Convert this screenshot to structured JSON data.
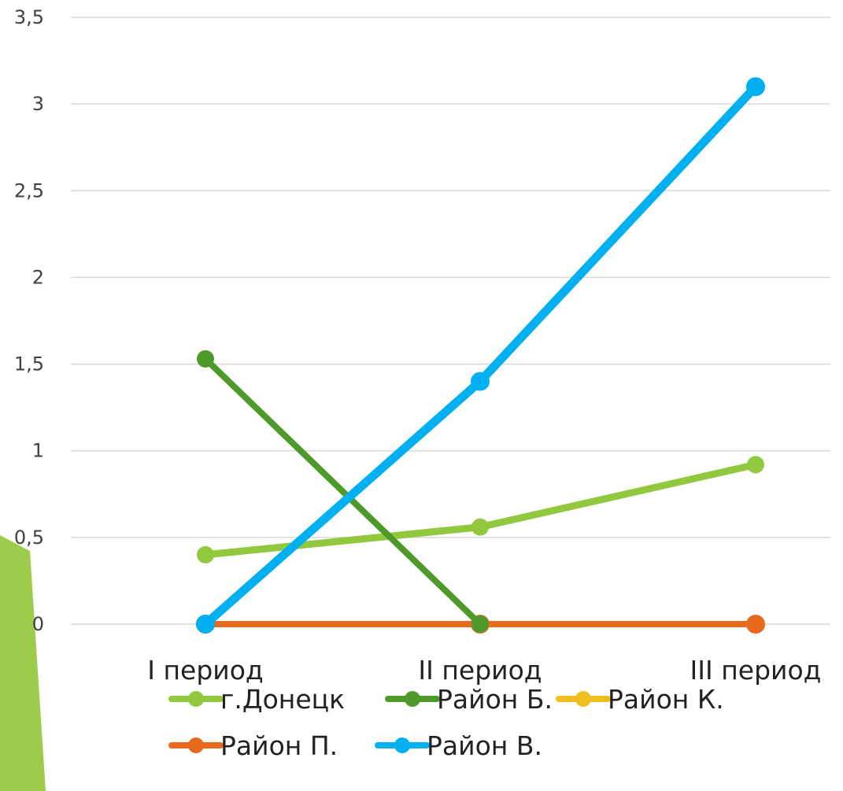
{
  "chart_data": {
    "type": "line",
    "title": "",
    "xlabel": "",
    "ylabel": "",
    "categories": [
      "I период",
      "II период",
      "III период"
    ],
    "y_ticks": [
      "0",
      "0,5",
      "1",
      "1,5",
      "2",
      "2,5",
      "3",
      "3,5"
    ],
    "ylim": [
      0,
      3.5
    ],
    "grid": true,
    "legend_position": "bottom",
    "series": [
      {
        "name": "г.Донецк",
        "color": "#92c83e",
        "values": [
          0.4,
          0.56,
          0.92
        ]
      },
      {
        "name": "Район Б.",
        "color": "#4d9a2a",
        "values": [
          1.53,
          0,
          null
        ]
      },
      {
        "name": "Район К.",
        "color": "#f0c020",
        "values": [
          0,
          0,
          0
        ]
      },
      {
        "name": "Район П.",
        "color": "#e86a1c",
        "values": [
          0,
          0,
          0
        ]
      },
      {
        "name": "Район В.",
        "color": "#00b0f0",
        "values": [
          0,
          1.4,
          3.1
        ]
      }
    ]
  },
  "decoration": {
    "accent_color": "#92c83e"
  }
}
